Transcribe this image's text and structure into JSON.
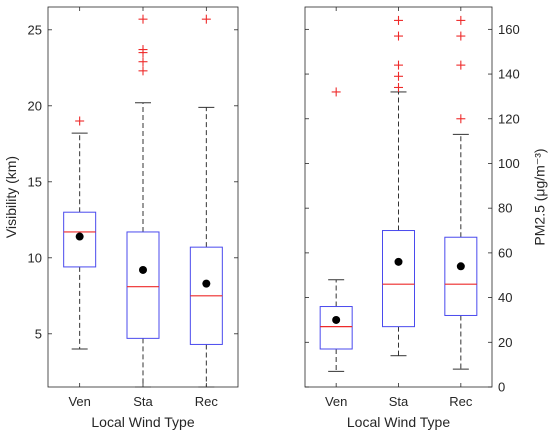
{
  "chart_data": [
    {
      "type": "box",
      "categories": [
        "Ven",
        "Sta",
        "Rec"
      ],
      "xlabel": "Local Wind Type",
      "ylabel": "Visibility (km)",
      "y_axis_side": "left",
      "ylim": [
        1.5,
        26.5
      ],
      "yticks": [
        5,
        10,
        15,
        20,
        25
      ],
      "boxes": [
        {
          "category": "Ven",
          "whisker_low": 4.0,
          "q1": 9.4,
          "median": 11.7,
          "q3": 13.0,
          "whisker_high": 18.2,
          "mean": 11.4,
          "outliers": [
            19.0
          ]
        },
        {
          "category": "Sta",
          "whisker_low": 1.5,
          "q1": 4.7,
          "median": 8.1,
          "q3": 11.7,
          "whisker_high": 20.2,
          "mean": 9.2,
          "outliers": [
            22.3,
            22.9,
            23.5,
            23.7,
            25.7
          ]
        },
        {
          "category": "Rec",
          "whisker_low": 1.5,
          "q1": 4.3,
          "median": 7.5,
          "q3": 10.7,
          "whisker_high": 19.9,
          "mean": 8.3,
          "outliers": [
            25.7
          ]
        }
      ],
      "colors": {
        "box": "#4a4aee",
        "median": "#ee2a2a",
        "outlier": "#ee2a2a",
        "mean": "#000000",
        "whisker": "#333333"
      }
    },
    {
      "type": "box",
      "categories": [
        "Ven",
        "Sta",
        "Rec"
      ],
      "xlabel": "Local Wind Type",
      "ylabel": "PM2.5 (μg/m⁻³)",
      "y_axis_side": "right",
      "ylim": [
        0,
        170
      ],
      "yticks": [
        0,
        20,
        40,
        60,
        80,
        100,
        120,
        140,
        160
      ],
      "boxes": [
        {
          "category": "Ven",
          "whisker_low": 7,
          "q1": 17,
          "median": 27,
          "q3": 36,
          "whisker_high": 48,
          "mean": 30,
          "outliers": [
            132
          ]
        },
        {
          "category": "Sta",
          "whisker_low": 14,
          "q1": 27,
          "median": 46,
          "q3": 70,
          "whisker_high": 132,
          "mean": 56,
          "outliers": [
            134,
            139,
            144,
            157,
            164
          ]
        },
        {
          "category": "Rec",
          "whisker_low": 8,
          "q1": 32,
          "median": 46,
          "q3": 67,
          "whisker_high": 113,
          "mean": 54,
          "outliers": [
            120,
            144,
            157,
            164
          ]
        }
      ],
      "colors": {
        "box": "#4a4aee",
        "median": "#ee2a2a",
        "outlier": "#ee2a2a",
        "mean": "#000000",
        "whisker": "#333333"
      }
    }
  ]
}
